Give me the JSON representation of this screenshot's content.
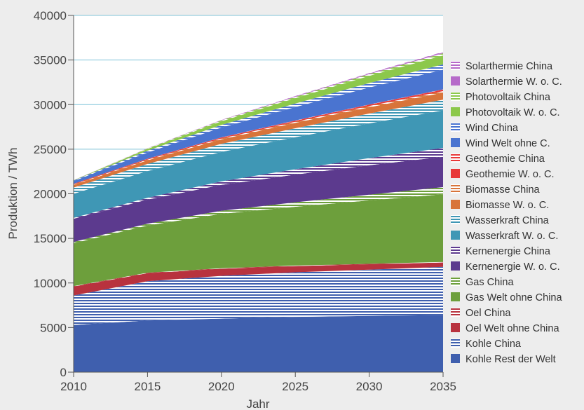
{
  "chart_data": {
    "type": "area",
    "stacked": true,
    "xlabel": "Jahr",
    "ylabel": "Produktion / TWh",
    "x": [
      2010,
      2015,
      2020,
      2025,
      2030,
      2035
    ],
    "xlim": [
      2010,
      2035
    ],
    "ylim": [
      0,
      40000
    ],
    "y_ticks": [
      0,
      5000,
      10000,
      15000,
      20000,
      25000,
      30000,
      35000,
      40000
    ],
    "y_tick_labels": [
      "0",
      "5000",
      "10000",
      "15000",
      "20000",
      "25000",
      "30000",
      "35000",
      "40000"
    ],
    "x_tick_labels": [
      "2010",
      "2015",
      "2020",
      "2025",
      "2030",
      "2035"
    ],
    "grid": true,
    "legend_position": "right",
    "series": [
      {
        "name": "Kohle Rest der Welt",
        "color": "#3f5fae",
        "hatch": false,
        "values": [
          5300,
          5800,
          6000,
          6200,
          6300,
          6400
        ]
      },
      {
        "name": "Kohle China",
        "color": "#3f5fae",
        "hatch": true,
        "values": [
          3300,
          4400,
          4800,
          5000,
          5200,
          5400
        ]
      },
      {
        "name": "Oel Welt ohne China",
        "color": "#b8323e",
        "hatch": false,
        "values": [
          1000,
          900,
          800,
          700,
          600,
          500
        ]
      },
      {
        "name": "Oel China",
        "color": "#b8323e",
        "hatch": true,
        "values": [
          50,
          50,
          50,
          50,
          50,
          50
        ]
      },
      {
        "name": "Gas Welt ohne China",
        "color": "#6d9f3c",
        "hatch": false,
        "values": [
          4800,
          5300,
          6100,
          6600,
          7100,
          7600
        ]
      },
      {
        "name": "Gas China",
        "color": "#6d9f3c",
        "hatch": true,
        "values": [
          150,
          200,
          350,
          500,
          650,
          800
        ]
      },
      {
        "name": "Kernenergie W. o. C.",
        "color": "#5c3a8e",
        "hatch": false,
        "values": [
          2600,
          2700,
          2900,
          3100,
          3300,
          3400
        ]
      },
      {
        "name": "Kernenergie China",
        "color": "#5c3a8e",
        "hatch": true,
        "values": [
          100,
          200,
          400,
          600,
          800,
          1000
        ]
      },
      {
        "name": "Wasserkraft W. o. C.",
        "color": "#3f97b5",
        "hatch": false,
        "values": [
          2700,
          3000,
          3300,
          3600,
          3900,
          4200
        ]
      },
      {
        "name": "Wasserkraft China",
        "color": "#3f97b5",
        "hatch": true,
        "values": [
          700,
          800,
          900,
          1000,
          1100,
          1200
        ]
      },
      {
        "name": "Biomasse W. o. C.",
        "color": "#d8743a",
        "hatch": false,
        "values": [
          300,
          400,
          500,
          600,
          700,
          800
        ]
      },
      {
        "name": "Biomasse China",
        "color": "#d8743a",
        "hatch": true,
        "values": [
          50,
          80,
          100,
          120,
          140,
          160
        ]
      },
      {
        "name": "Geothemie W. o. C.",
        "color": "#e83838",
        "hatch": false,
        "values": [
          70,
          90,
          110,
          130,
          150,
          170
        ]
      },
      {
        "name": "Geothemie China",
        "color": "#e83838",
        "hatch": true,
        "values": [
          5,
          10,
          15,
          20,
          25,
          30
        ]
      },
      {
        "name": "Wind Welt ohne C.",
        "color": "#4a74d0",
        "hatch": false,
        "values": [
          300,
          700,
          1100,
          1500,
          1900,
          2200
        ]
      },
      {
        "name": "Wind China",
        "color": "#4a74d0",
        "hatch": true,
        "values": [
          60,
          200,
          300,
          400,
          500,
          600
        ]
      },
      {
        "name": "Photovoltaik W. o. C.",
        "color": "#8cc84b",
        "hatch": false,
        "values": [
          30,
          200,
          400,
          600,
          800,
          1000
        ]
      },
      {
        "name": "Photovoltaik China",
        "color": "#8cc84b",
        "hatch": true,
        "values": [
          5,
          50,
          100,
          150,
          200,
          250
        ]
      },
      {
        "name": "Solarthermie W. o. C.",
        "color": "#b66ac9",
        "hatch": false,
        "values": [
          5,
          20,
          40,
          60,
          80,
          100
        ]
      },
      {
        "name": "Solarthermie China",
        "color": "#b66ac9",
        "hatch": true,
        "values": [
          2,
          10,
          20,
          30,
          40,
          50
        ]
      }
    ]
  }
}
